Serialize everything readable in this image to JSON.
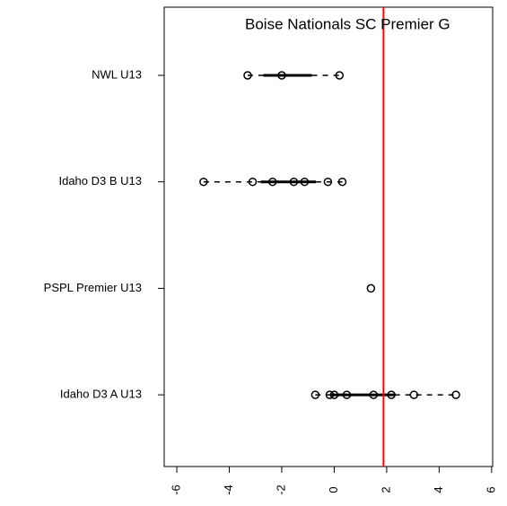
{
  "chart_data": {
    "type": "boxplot",
    "categories": [
      "NWL U13",
      "Idaho D3 B U13",
      "PSPL Premier U13",
      "Idaho D3 A U13"
    ],
    "points": [
      [
        -3.3,
        -2.0,
        0.2
      ],
      [
        -4.98,
        -3.11,
        -2.35,
        -1.54,
        -1.13,
        -0.24,
        0.31
      ],
      [
        1.4
      ],
      [
        -0.72,
        -0.17,
        0,
        0.48,
        1.5,
        2.18,
        3.04,
        4.64
      ]
    ],
    "boxes": [
      [
        -3.3,
        -2.7,
        -0.85,
        0.2
      ],
      [
        -4.98,
        -2.8,
        -0.7,
        0.31
      ],
      [
        1.4,
        1.4,
        1.4,
        1.4
      ],
      [
        -0.72,
        -0.1,
        2.3,
        4.64
      ]
    ],
    "xlim": [
      -6.48,
      6.04
    ],
    "xticks": [
      -6,
      -4,
      -2,
      0,
      2,
      4,
      6
    ],
    "reference_line": {
      "value": 1.88,
      "label": "Boise Nationals SC Premier G",
      "color": "#ff0000"
    }
  }
}
